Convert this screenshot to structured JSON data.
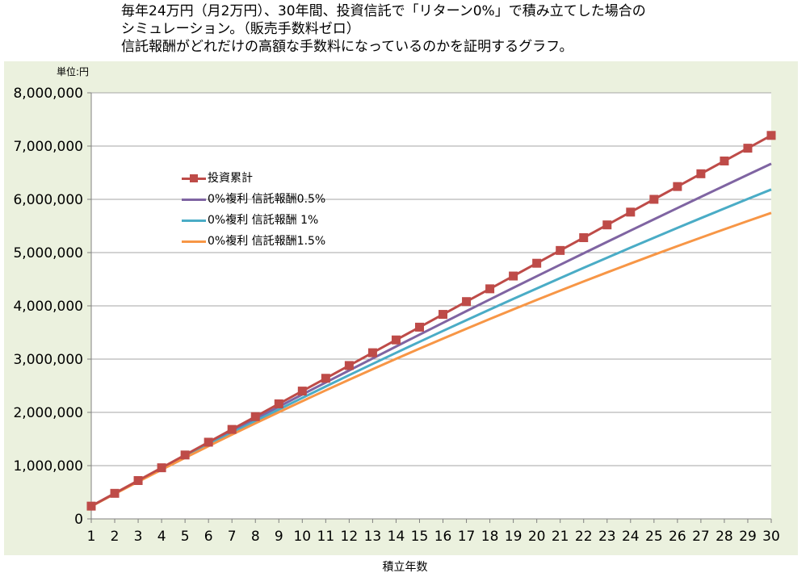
{
  "title_lines": [
    "毎年24万円（月2万円）、30年間、投資信託で「リターン0%」で積み立てした場合の",
    "シミュレーション。（販売手数料ゼロ）",
    "信託報酬がどれだけの高額な手数料になっているのかを証明するグラフ。"
  ],
  "colors": {
    "plot_bg": "#ebf1de",
    "grid": "#a6a6a6"
  },
  "chart_data": {
    "type": "line",
    "title": "毎年24万円（月2万円）、30年間、投資信託で「リターン0%」で積み立てした場合のシミュレーション。（販売手数料ゼロ）信託報酬がどれだけの高額な手数料になっているのかを証明するグラフ。",
    "unit_label": "単位:円",
    "xlabel": "積立年数",
    "ylabel": "",
    "x": [
      1,
      2,
      3,
      4,
      5,
      6,
      7,
      8,
      9,
      10,
      11,
      12,
      13,
      14,
      15,
      16,
      17,
      18,
      19,
      20,
      21,
      22,
      23,
      24,
      25,
      26,
      27,
      28,
      29,
      30
    ],
    "ylim": [
      0,
      8000000
    ],
    "yticks": [
      0,
      1000000,
      2000000,
      3000000,
      4000000,
      5000000,
      6000000,
      7000000,
      8000000
    ],
    "ytick_labels": [
      "0",
      "1,000,000",
      "2,000,000",
      "3,000,000",
      "4,000,000",
      "5,000,000",
      "6,000,000",
      "7,000,000",
      "8,000,000"
    ],
    "grid": true,
    "legend_position": "upper-left inside plot",
    "series": [
      {
        "name": "投資累計",
        "color": "#be4b48",
        "marker": "square",
        "values": [
          240000,
          480000,
          720000,
          960000,
          1200000,
          1440000,
          1680000,
          1920000,
          2160000,
          2400000,
          2640000,
          2880000,
          3120000,
          3360000,
          3600000,
          3840000,
          4080000,
          4320000,
          4560000,
          4800000,
          5040000,
          5280000,
          5520000,
          5760000,
          6000000,
          6240000,
          6480000,
          6720000,
          6960000,
          7200000
        ]
      },
      {
        "name": "0%複利 信託報酬0.5%",
        "color": "#7f64a2",
        "marker": "none",
        "values": [
          238800,
          476406,
          712824,
          948060,
          1182120,
          1415009,
          1646734,
          1877300,
          2106714,
          2334980,
          2562105,
          2788095,
          3012954,
          3236690,
          3459306,
          3680810,
          3901206,
          4120500,
          4338698,
          4555804,
          4771825,
          4986766,
          5200632,
          5413429,
          5625162,
          5835836,
          6045457,
          6254030,
          6461560,
          6668052
        ]
      },
      {
        "name": "0%複利 信託報酬 1%",
        "color": "#4aacc6",
        "marker": "none",
        "values": [
          237600,
          472824,
          705696,
          936239,
          1164477,
          1390432,
          1614128,
          1835587,
          2054831,
          2271883,
          2486764,
          2699496,
          2910101,
          3118600,
          3325014,
          3529364,
          3731670,
          3931953,
          4130234,
          4326532,
          4520867,
          4713258,
          4903725,
          5092288,
          5278965,
          5463775,
          5646737,
          5827870,
          6007191,
          6184719
        ]
      },
      {
        "name": "0%複利 信託報酬1.5%",
        "color": "#f79646",
        "marker": "none",
        "values": [
          236400,
          469254,
          698615,
          924536,
          1147068,
          1366262,
          1582168,
          1794835,
          2004313,
          2210648,
          2413888,
          2614080,
          2811269,
          3005500,
          3196818,
          3385265,
          3570886,
          3753723,
          3933817,
          4111210,
          4285942,
          4458053,
          4627582,
          4794568,
          4959050,
          5121064,
          5280648,
          5437838,
          5592671,
          5745181
        ]
      }
    ]
  }
}
